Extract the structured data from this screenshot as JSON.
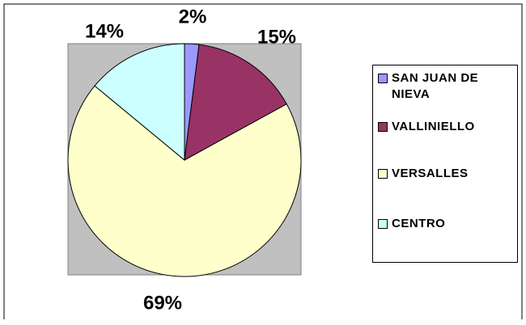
{
  "chart_data": {
    "type": "pie",
    "categories": [
      "SAN JUAN DE NIEVA",
      "VALLINIELLO",
      "VERSALLES",
      "CENTRO"
    ],
    "values": [
      2,
      15,
      69,
      14
    ],
    "value_labels": [
      "2%",
      "15%",
      "69%",
      "14%"
    ],
    "colors": [
      "#9999ff",
      "#993366",
      "#ffffcc",
      "#ccffff"
    ],
    "legend": "right"
  }
}
